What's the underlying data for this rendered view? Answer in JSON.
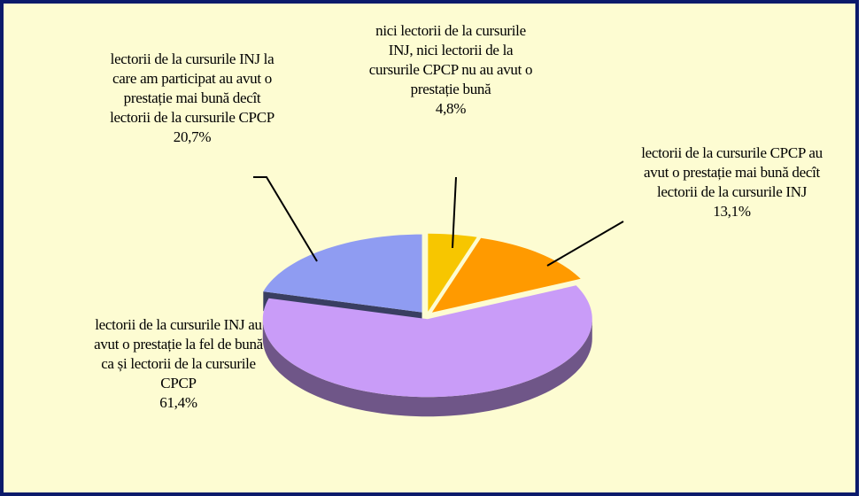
{
  "chart_data": {
    "type": "pie",
    "categories": [
      "nici lectorii de la cursurile INJ, nici lectorii de la cursurile CPCP nu au avut o prestație bună",
      "lectorii de la cursurile CPCP au avut o prestație mai bună decît lectorii de la cursurile INJ",
      "lectorii de la cursurile INJ au avut o prestație la fel de bună ca și lectorii de la cursurile CPCP",
      "lectorii de la cursurile INJ la care am participat au avut o prestație mai bună decît lectorii de la cursurile CPCP"
    ],
    "values": [
      4.8,
      13.1,
      61.4,
      20.7
    ],
    "value_labels": [
      "4,8%",
      "13,1%",
      "61,4%",
      "20,7%"
    ],
    "colors": [
      "#f7c600",
      "#ff9a00",
      "#c99cf8",
      "#8f9cf2"
    ]
  }
}
